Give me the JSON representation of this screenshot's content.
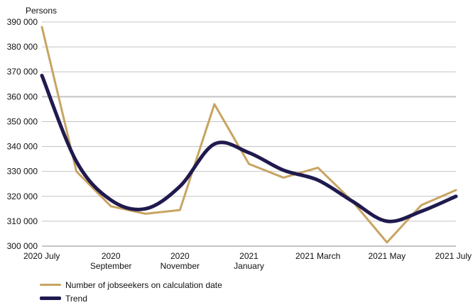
{
  "chart_data": {
    "type": "line",
    "ylabel": "Persons",
    "ylim": [
      300000,
      390000
    ],
    "yticks": [
      300000,
      310000,
      320000,
      330000,
      340000,
      350000,
      360000,
      370000,
      380000,
      390000
    ],
    "ytick_labels": [
      "300 000",
      "310 000",
      "320 000",
      "330 000",
      "340 000",
      "350 000",
      "360 000",
      "370 000",
      "380 000",
      "390 000"
    ],
    "x_categories": [
      "2020-07",
      "2020-08",
      "2020-09",
      "2020-10",
      "2020-11",
      "2020-12",
      "2021-01",
      "2021-02",
      "2021-03",
      "2021-04",
      "2021-05",
      "2021-06",
      "2021-07"
    ],
    "xtick_labels": [
      {
        "month": "2020-07",
        "lines": [
          "2020 July"
        ]
      },
      {
        "month": "2020-09",
        "lines": [
          "2020",
          "September"
        ]
      },
      {
        "month": "2020-11",
        "lines": [
          "2020",
          "November"
        ]
      },
      {
        "month": "2021-01",
        "lines": [
          "2021",
          "January"
        ]
      },
      {
        "month": "2021-03",
        "lines": [
          "2021 March"
        ]
      },
      {
        "month": "2021-05",
        "lines": [
          "2021 May"
        ]
      },
      {
        "month": "2021-07",
        "lines": [
          "2021 July"
        ]
      }
    ],
    "grid": true,
    "legend_position": "bottom-left",
    "series": [
      {
        "name": "Number of jobseekers on calculation date",
        "color": "#c8a462",
        "line_width": 3,
        "values": [
          388000,
          330000,
          316000,
          313000,
          314500,
          357000,
          333000,
          327500,
          331500,
          318000,
          301500,
          316500,
          322500
        ]
      },
      {
        "name": "Trend",
        "color": "#1f1a4e",
        "line_width": 5,
        "values": [
          368500,
          334000,
          318500,
          315000,
          324000,
          341000,
          337500,
          330500,
          326500,
          318000,
          310000,
          314000,
          320000
        ]
      }
    ]
  }
}
